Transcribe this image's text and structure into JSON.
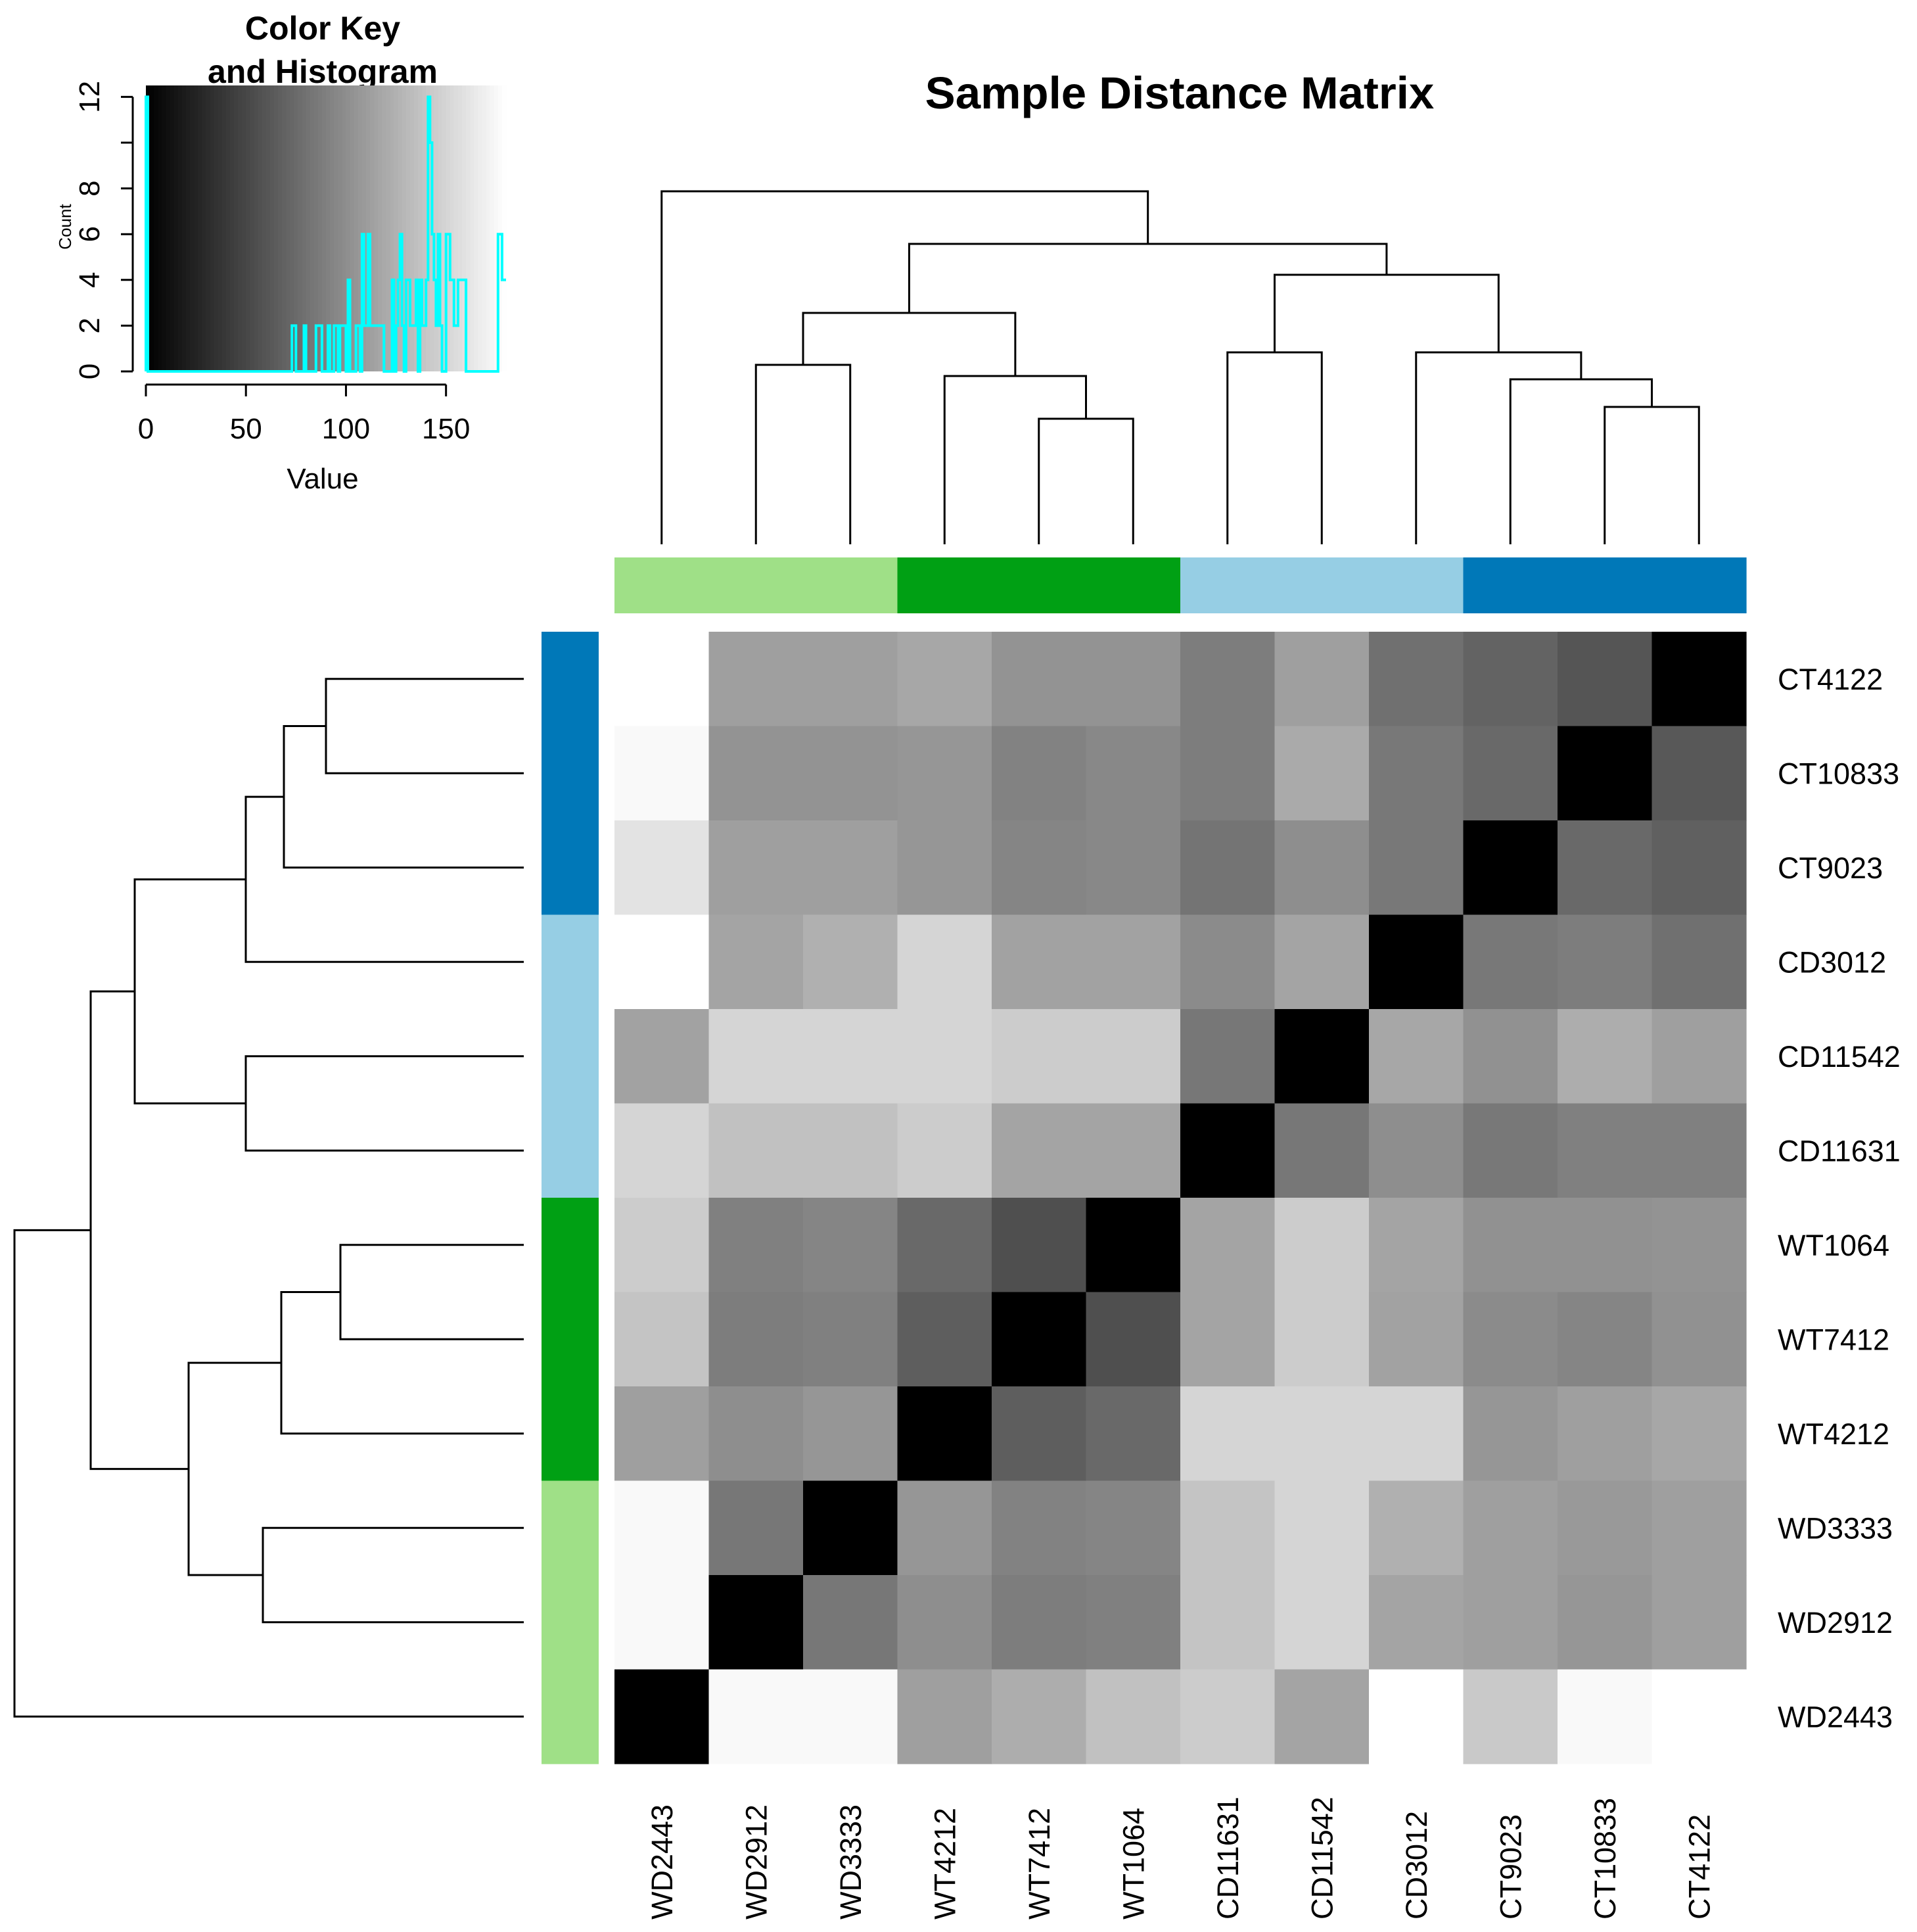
{
  "chart_data": {
    "type": "heatmap",
    "title": "Sample Distance Matrix",
    "columns": [
      "WD2443",
      "WD2912",
      "WD3333",
      "WT4212",
      "WT7412",
      "WT1064",
      "CD11631",
      "CD11542",
      "CD3012",
      "CT9023",
      "CT10833",
      "CT4122"
    ],
    "rows": [
      "CT4122",
      "CT10833",
      "CT9023",
      "CD3012",
      "CD11542",
      "CD11631",
      "WT1064",
      "WT7412",
      "WT4212",
      "WD3333",
      "WD2912",
      "WD2443"
    ],
    "value_range": [
      0,
      180
    ],
    "color_scale": {
      "low": "#000000",
      "high": "#ffffff"
    },
    "values": [
      [
        180,
        112,
        112,
        118,
        104,
        104,
        88,
        112,
        79,
        70,
        60,
        0
      ],
      [
        176,
        104,
        104,
        106,
        92,
        96,
        88,
        120,
        85,
        74,
        0,
        62
      ],
      [
        160,
        112,
        112,
        106,
        94,
        96,
        82,
        100,
        85,
        0,
        74,
        68
      ],
      [
        180,
        116,
        124,
        150,
        114,
        114,
        98,
        116,
        0,
        85,
        88,
        79
      ],
      [
        114,
        150,
        150,
        150,
        144,
        144,
        84,
        0,
        118,
        102,
        122,
        112
      ],
      [
        150,
        136,
        136,
        144,
        116,
        116,
        0,
        84,
        100,
        85,
        90,
        90
      ],
      [
        144,
        90,
        94,
        74,
        56,
        0,
        116,
        144,
        116,
        102,
        102,
        104
      ],
      [
        138,
        88,
        90,
        66,
        0,
        56,
        116,
        144,
        114,
        98,
        94,
        102
      ],
      [
        112,
        100,
        106,
        0,
        66,
        74,
        150,
        150,
        150,
        106,
        112,
        118
      ],
      [
        176,
        84,
        0,
        106,
        92,
        94,
        138,
        150,
        124,
        112,
        108,
        112
      ],
      [
        176,
        0,
        84,
        100,
        88,
        90,
        138,
        150,
        116,
        112,
        106,
        112
      ],
      [
        0,
        176,
        176,
        112,
        122,
        136,
        144,
        116,
        180,
        142,
        176,
        180
      ]
    ],
    "group_colors": {
      "WD": "#9fe087",
      "WT": "#00a014",
      "CD": "#96cee4",
      "CT": "#0078b8"
    },
    "column_groups": [
      "WD",
      "WD",
      "WD",
      "WT",
      "WT",
      "WT",
      "CD",
      "CD",
      "CD",
      "CT",
      "CT",
      "CT"
    ],
    "row_groups": [
      "CT",
      "CT",
      "CT",
      "CD",
      "CD",
      "CD",
      "WT",
      "WT",
      "WT",
      "WD",
      "WD",
      "WD"
    ],
    "color_key": {
      "title_line1": "Color Key",
      "title_line2": "and Histogram",
      "xlabel": "Value",
      "ylabel": "Count",
      "xticks": [
        0,
        50,
        100,
        150
      ],
      "yticks": [
        0,
        2,
        4,
        6,
        8,
        12
      ],
      "xlim": [
        0,
        180
      ],
      "ylim": [
        0,
        12.5
      ],
      "histogram_color": "#00ffff",
      "histogram": [
        [
          0,
          12
        ],
        [
          1,
          0
        ],
        [
          73,
          2
        ],
        [
          75,
          0
        ],
        [
          79,
          2
        ],
        [
          80,
          0
        ],
        [
          85,
          2
        ],
        [
          88,
          0
        ],
        [
          91,
          2
        ],
        [
          92,
          0
        ],
        [
          94,
          2
        ],
        [
          96,
          0
        ],
        [
          97,
          2
        ],
        [
          100,
          0
        ],
        [
          101,
          4
        ],
        [
          102,
          0
        ],
        [
          105,
          2
        ],
        [
          107,
          0
        ],
        [
          108,
          6
        ],
        [
          109,
          2
        ],
        [
          111,
          6
        ],
        [
          112,
          2
        ],
        [
          119,
          0
        ],
        [
          123,
          4
        ],
        [
          124,
          0
        ],
        [
          125,
          2
        ],
        [
          126,
          4
        ],
        [
          127,
          6
        ],
        [
          128,
          2
        ],
        [
          129,
          0
        ],
        [
          130,
          4
        ],
        [
          132,
          2
        ],
        [
          135,
          4
        ],
        [
          136,
          0
        ],
        [
          137,
          4
        ],
        [
          138,
          2
        ],
        [
          140,
          4
        ],
        [
          141,
          12
        ],
        [
          142,
          10
        ],
        [
          143,
          6
        ],
        [
          144,
          4
        ],
        [
          145,
          2
        ],
        [
          146,
          6
        ],
        [
          147,
          2
        ],
        [
          148,
          0
        ],
        [
          150,
          6
        ],
        [
          152,
          4
        ],
        [
          154,
          2
        ],
        [
          156,
          4
        ],
        [
          160,
          0
        ],
        [
          176,
          6
        ],
        [
          178,
          4
        ],
        [
          180,
          4
        ]
      ]
    }
  }
}
